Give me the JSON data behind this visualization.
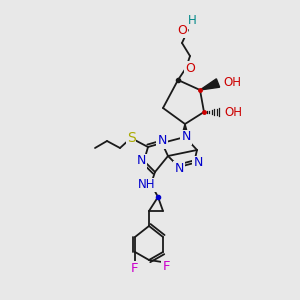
{
  "background_color": "#e8e8e8",
  "fig_width": 3.0,
  "fig_height": 3.0,
  "dpi": 100,
  "bond_color": "#1a1a1a",
  "colors": {
    "N": "#0000cc",
    "S": "#aaaa00",
    "O": "#cc0000",
    "HO": "#008888",
    "OH": "#cc0000",
    "F": "#cc00cc",
    "NH": "#0000cc",
    "H": "#008888"
  }
}
